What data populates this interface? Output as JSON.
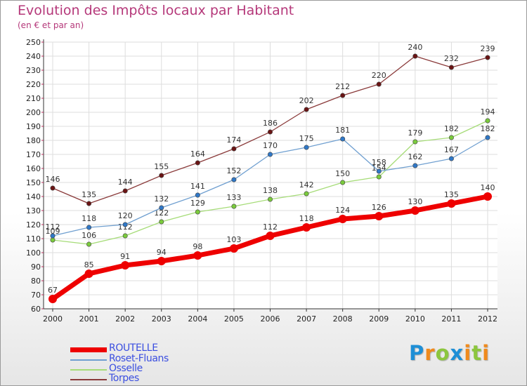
{
  "title": "Evolution des Impôts locaux par Habitant",
  "subtitle": "(en € et par an)",
  "logo": {
    "text": "Proxiti",
    "letters": [
      {
        "ch": "P",
        "color": "#1e8fd6"
      },
      {
        "ch": "r",
        "color": "#f08a1c"
      },
      {
        "ch": "o",
        "color": "#8cc63e"
      },
      {
        "ch": "x",
        "color": "#1e8fd6"
      },
      {
        "ch": "i",
        "color": "#f08a1c"
      },
      {
        "ch": "t",
        "color": "#8cc63e"
      },
      {
        "ch": "i",
        "color": "#f08a1c"
      }
    ]
  },
  "chart_data": {
    "type": "line",
    "title": "Evolution des Impôts locaux par Habitant",
    "subtitle": "(en € et par an)",
    "xlabel": "",
    "ylabel": "",
    "x": [
      "2000",
      "2001",
      "2002",
      "2003",
      "2004",
      "2005",
      "2006",
      "2007",
      "2008",
      "2009",
      "2010",
      "2011",
      "2012"
    ],
    "ylim": [
      60,
      250
    ],
    "yticks": [
      60,
      70,
      80,
      90,
      100,
      110,
      120,
      130,
      140,
      150,
      160,
      170,
      180,
      190,
      200,
      210,
      220,
      230,
      240,
      250
    ],
    "grid": true,
    "legend_position": "bottom-left",
    "series": [
      {
        "name": "ROUTELLE",
        "color": "#ee0000",
        "point_color": "#ee0000",
        "width": 7,
        "values": [
          67,
          85,
          91,
          94,
          98,
          103,
          112,
          118,
          124,
          126,
          130,
          135,
          140
        ],
        "labels": [
          "67",
          "85",
          "91",
          "94",
          "98",
          "103",
          "112",
          "118",
          "124",
          "126",
          "130",
          "135",
          "140"
        ]
      },
      {
        "name": "Roset-Fluans",
        "color": "#6f9fd0",
        "point_color": "#2f78c8",
        "width": 1.3,
        "values": [
          112,
          118,
          120,
          132,
          141,
          152,
          170,
          175,
          181,
          158,
          162,
          167,
          182
        ],
        "labels": [
          "112",
          "118",
          "120",
          "132",
          "141",
          "152",
          "170",
          "175",
          "181",
          "158",
          "162",
          "167",
          "182"
        ]
      },
      {
        "name": "Osselle",
        "color": "#a6dc78",
        "point_color": "#7acb3c",
        "width": 1.3,
        "values": [
          109,
          106,
          112,
          122,
          129,
          133,
          138,
          142,
          150,
          154,
          179,
          182,
          194
        ],
        "labels": [
          "109",
          "106",
          "112",
          "122",
          "129",
          "133",
          "138",
          "142",
          "150",
          "154",
          "179",
          "182",
          "194"
        ]
      },
      {
        "name": "Torpes",
        "color": "#8a3a3a",
        "point_color": "#6a1414",
        "width": 1.3,
        "values": [
          146,
          135,
          144,
          155,
          164,
          174,
          186,
          202,
          212,
          220,
          240,
          232,
          239
        ],
        "labels": [
          "146",
          "135",
          "144",
          "155",
          "164",
          "174",
          "186",
          "202",
          "212",
          "220",
          "240",
          "232",
          "239"
        ]
      }
    ]
  }
}
